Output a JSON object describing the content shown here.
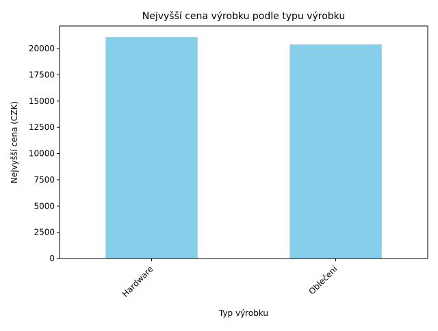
{
  "chart_data": {
    "type": "bar",
    "title": "Nejvyšší cena výrobku podle typu výrobku",
    "xlabel": "Typ výrobku",
    "ylabel": "Nejvyšší cena (CZK)",
    "categories": [
      "Hardware",
      "Oblečení"
    ],
    "values": [
      21100,
      20400
    ],
    "ylim": [
      0,
      22155
    ],
    "yticks": [
      0,
      2500,
      5000,
      7500,
      10000,
      12500,
      15000,
      17500,
      20000
    ],
    "ytick_labels": [
      "0",
      "2500",
      "5000",
      "7500",
      "10000",
      "12500",
      "15000",
      "17500",
      "20000"
    ],
    "bar_color": "#87ceeb",
    "grid": false,
    "legend": "none",
    "xtick_rotation": 45
  }
}
